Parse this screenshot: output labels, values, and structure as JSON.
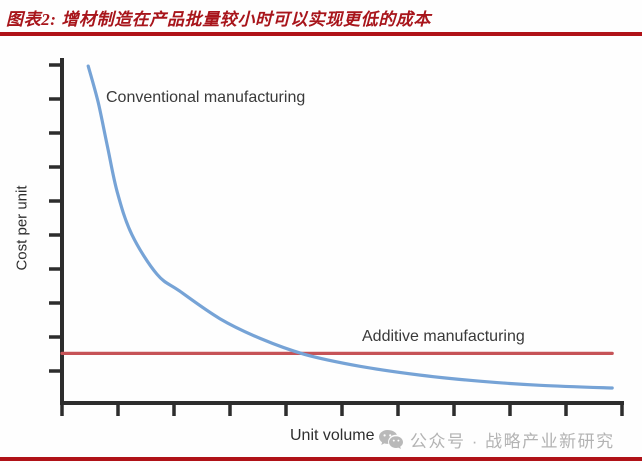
{
  "figure": {
    "title": "图表2: 增材制造在产品批量较小时可以实现更低的成本"
  },
  "watermark": {
    "icon": "wechat-icon",
    "text": "公众号 · 战略产业新研究"
  },
  "colors": {
    "title_red": "#a8151b",
    "rule_red": "#b01218",
    "conventional_blue": "#76a3d6",
    "additive_red": "#c65357",
    "axis_dark": "#2d2d2d",
    "watermark_gray": "#b9b9b9"
  },
  "chart_data": {
    "type": "line",
    "title": "",
    "xlabel": "Unit volume",
    "ylabel": "Cost per unit",
    "grid": false,
    "legend_position": "inline-annotations",
    "axes_numeric_labels": false,
    "x_tick_count": 11,
    "y_tick_count": 10,
    "xlim": [
      0,
      10
    ],
    "ylim": [
      0,
      10
    ],
    "annotation": "curves intersect near x≈4.3 where additive becomes more expensive than conventional",
    "series": [
      {
        "name": "Conventional manufacturing",
        "shape": "exponential-decay",
        "color": "#76a3d6",
        "x": [
          0.47,
          0.65,
          0.81,
          0.99,
          1.25,
          1.7,
          2.11,
          2.83,
          3.55,
          4.35,
          5.34,
          6.42,
          7.49,
          8.57,
          9.86
        ],
        "y": [
          9.91,
          8.83,
          7.58,
          6.21,
          4.96,
          3.79,
          3.29,
          2.48,
          1.9,
          1.43,
          1.08,
          0.82,
          0.64,
          0.52,
          0.44
        ]
      },
      {
        "name": "Additive manufacturing",
        "shape": "constant",
        "color": "#c65357",
        "x": [
          0,
          9.86
        ],
        "y": [
          1.46,
          1.46
        ]
      }
    ]
  }
}
